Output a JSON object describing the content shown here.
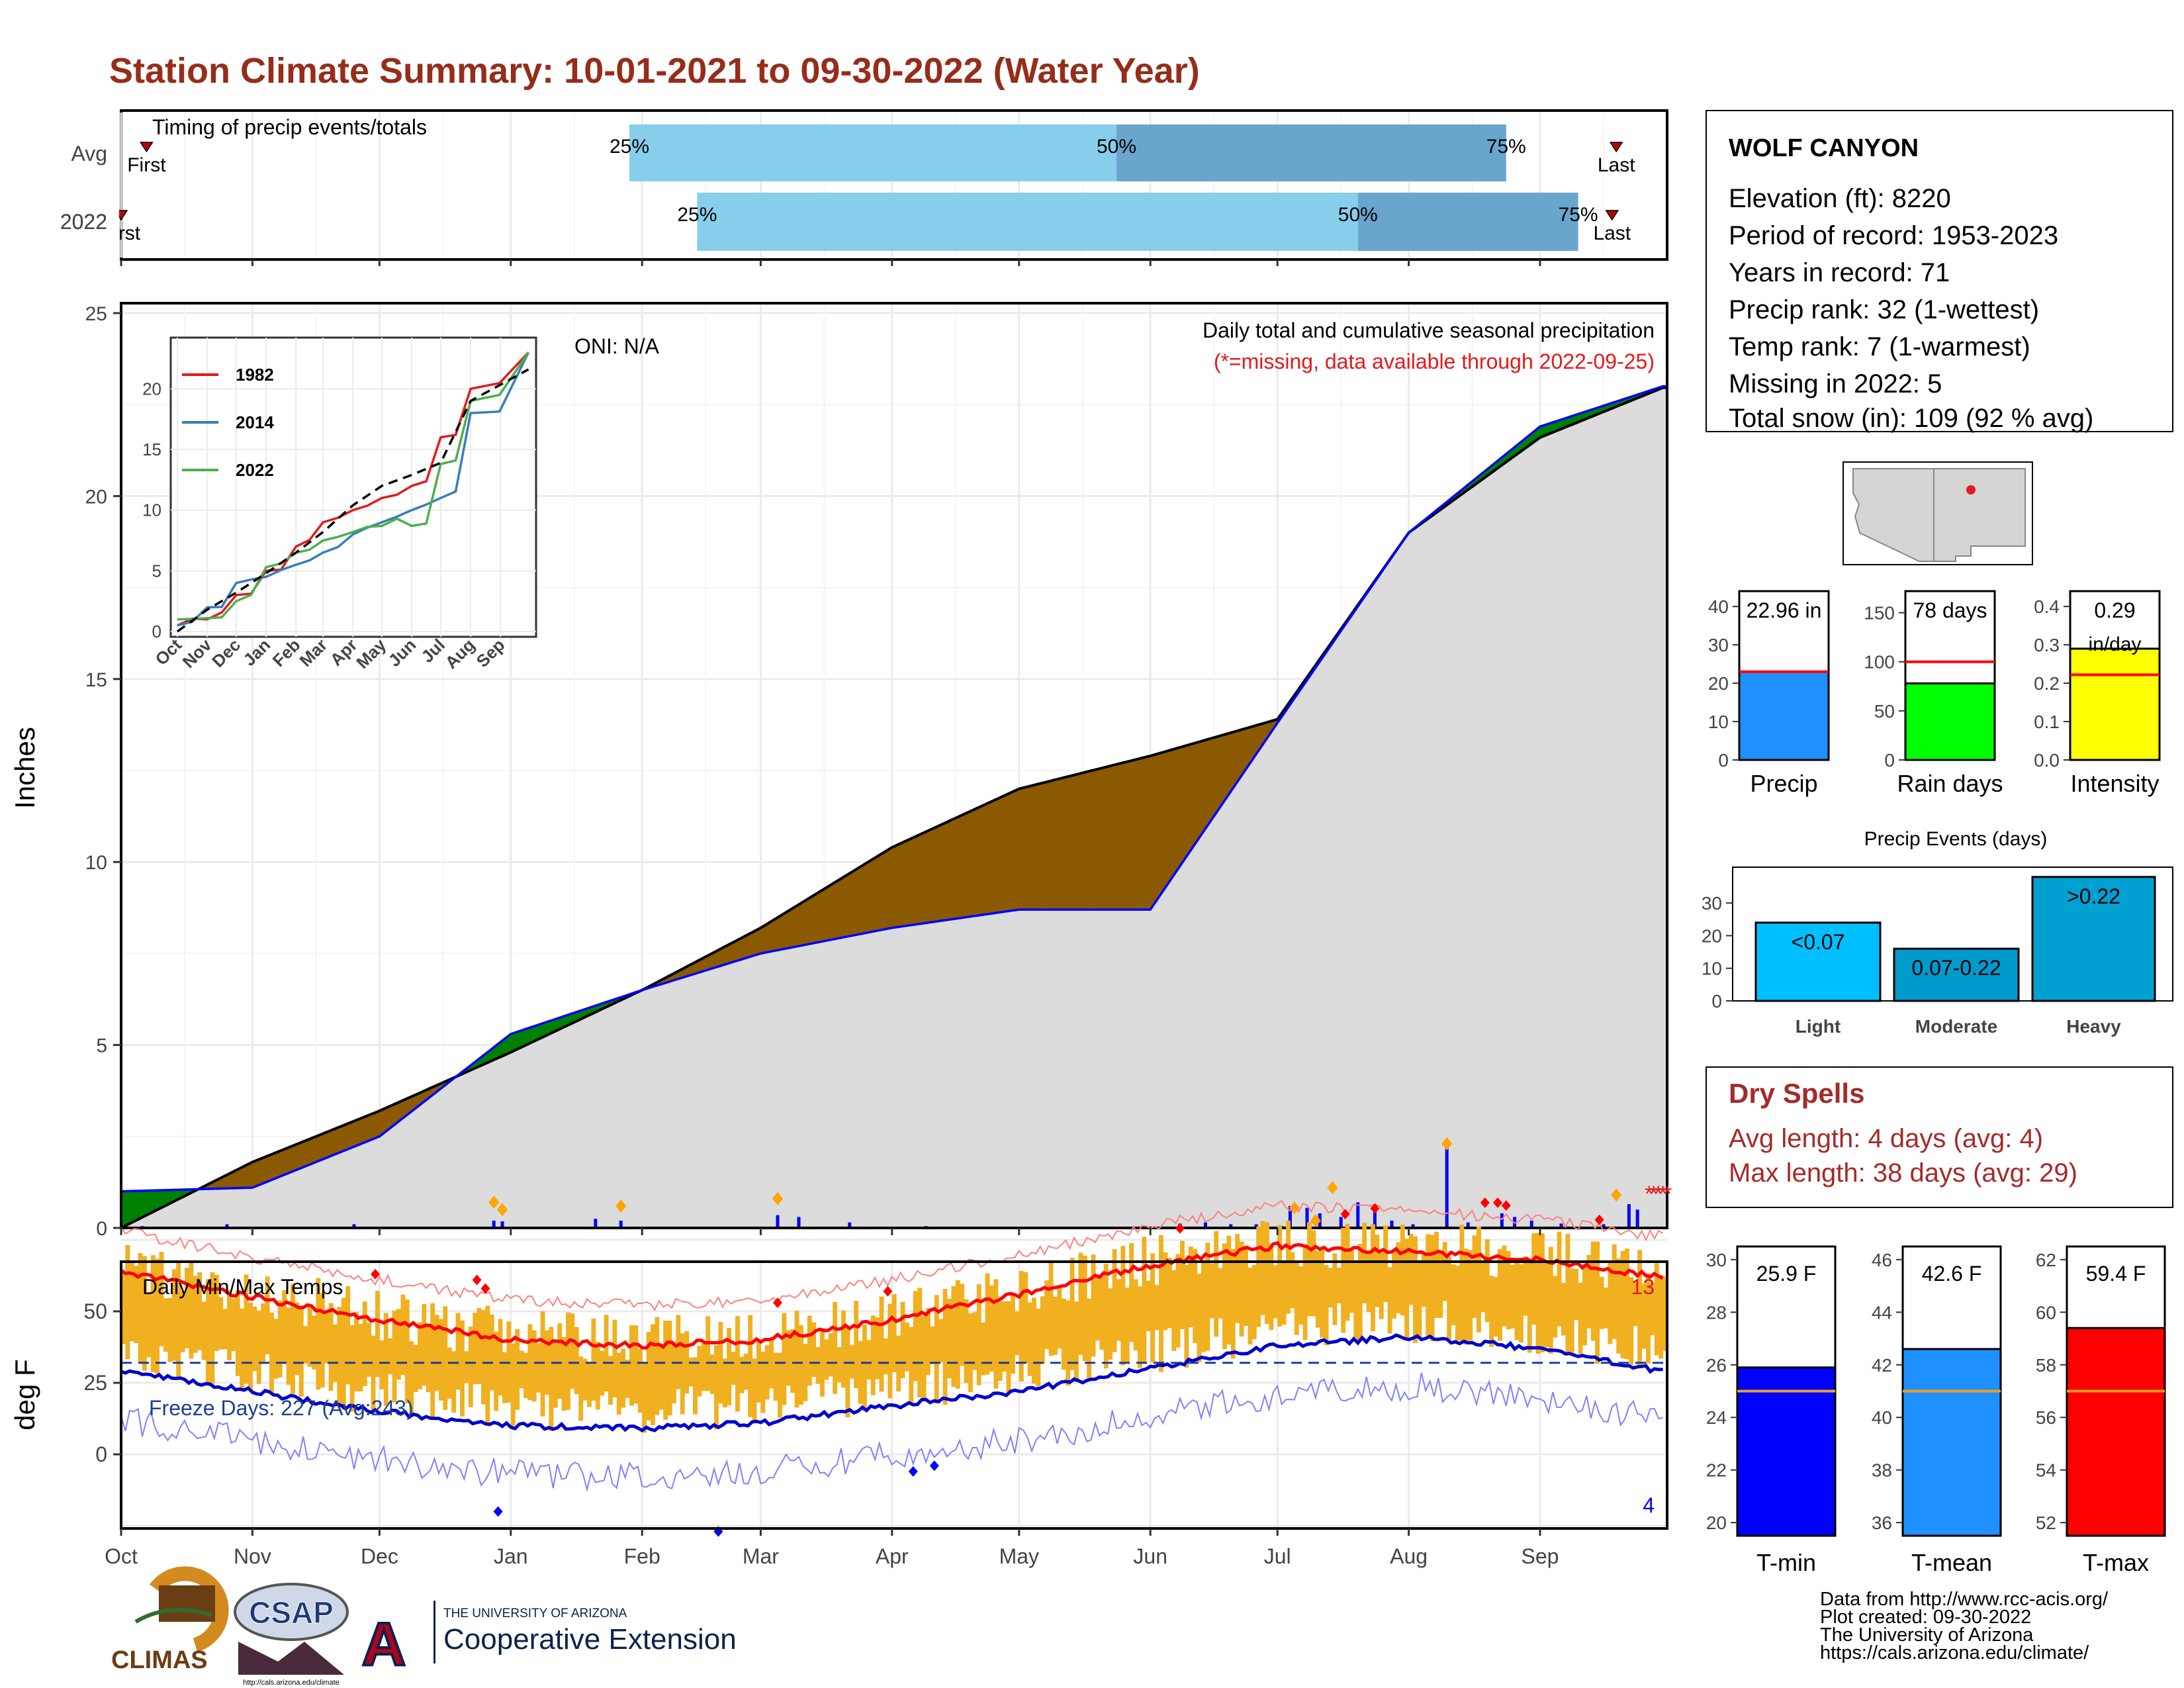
{
  "title": "Station Climate Summary: 10-01-2021 to 09-30-2022 (Water Year)",
  "months": [
    "Oct",
    "Nov",
    "Dec",
    "Jan",
    "Feb",
    "Mar",
    "Apr",
    "May",
    "Jun",
    "Jul",
    "Aug",
    "Sep"
  ],
  "timing": {
    "label": "Timing of precip events/totals",
    "rows": [
      {
        "name": "Avg",
        "first_day": 6,
        "p25_day": 120,
        "p50_day": 235,
        "p75_day": 327,
        "last_day": 353,
        "first_label": "First",
        "last_label": "Last",
        "p25_label": "25%",
        "p50_label": "50%",
        "p75_label": "75%"
      },
      {
        "name": "2022",
        "first_day": 0,
        "p25_day": 136,
        "p50_day": 292,
        "p75_day": 344,
        "last_day": 352,
        "first_label": "First",
        "last_label": "Last",
        "p25_label": "25%",
        "p50_label": "50%",
        "p75_label": "75%"
      }
    ]
  },
  "precip_panel": {
    "ylabel": "Inches",
    "yticks": [
      0,
      5,
      10,
      15,
      20,
      25
    ],
    "ylim": [
      0,
      25
    ],
    "oni": "ONI: N/A",
    "note": "Daily total and cumulative seasonal precipitation",
    "missing_note": "(*=missing, data available through 2022-09-25)"
  },
  "inset": {
    "series": [
      {
        "name": "1982",
        "color": "#e41a1c"
      },
      {
        "name": "2014",
        "color": "#377eb8"
      },
      {
        "name": "2022",
        "color": "#4daf4a"
      }
    ],
    "yticks": [
      0,
      5,
      10,
      15,
      20
    ],
    "months": [
      "Oct",
      "Nov",
      "Dec",
      "Jan",
      "Feb",
      "Mar",
      "Apr",
      "May",
      "Jun",
      "Jul",
      "Aug",
      "Sep"
    ]
  },
  "temp_panel": {
    "ylabel": "deg F",
    "label": "Daily Min/Max Temps",
    "freeze_days": "Freeze Days: 227 (Avg:243)",
    "yticks": [
      0,
      25,
      50
    ],
    "max_count": "13",
    "min_count": "4"
  },
  "station": {
    "name": "WOLF CANYON",
    "lines": [
      "Elevation (ft): 8220",
      "Period of record: 1953-2023",
      "Years in record: 71",
      "Precip rank: 32 (1-wettest)",
      "Temp rank: 7 (1-warmest)",
      "Missing in 2022: 5",
      "Total snow (in): 109 (92 % avg)"
    ]
  },
  "precip_bars": [
    {
      "label": "Precip",
      "value": 22.96,
      "avg": 23,
      "value_label": "22.96 in",
      "color": "#1e90ff",
      "yticks": [
        0,
        10,
        20,
        30,
        40
      ],
      "ymax": 44
    },
    {
      "label": "Rain days",
      "value": 78,
      "avg": 100,
      "value_label": "78 days",
      "color": "#00ff00",
      "yticks": [
        0,
        50,
        100,
        150
      ],
      "ymax": 172
    },
    {
      "label": "Intensity",
      "value": 0.29,
      "avg": 0.222,
      "value_label": "0.29",
      "value_label2": "in/day",
      "color": "#ffff00",
      "yticks": [
        "0.0",
        "0.1",
        "0.2",
        "0.3",
        "0.4"
      ],
      "ymax": 0.44
    }
  ],
  "precip_events": {
    "title": "Precip Events (days)",
    "yticks": [
      0,
      10,
      20,
      30
    ],
    "ymax": 41,
    "bars": [
      {
        "label": "Light",
        "value": 24,
        "text": "<0.07",
        "color": "#00bfff"
      },
      {
        "label": "Moderate",
        "value": 16,
        "text": "0.07-0.22",
        "color": "#009acd"
      },
      {
        "label": "Heavy",
        "value": 38,
        "text": ">0.22",
        "color": "#00a0d0"
      }
    ]
  },
  "dry_spells": {
    "title": "Dry Spells",
    "avg_line": "Avg length: 4 days (avg: 4)",
    "max_line": "Max length: 38 days (avg: 29)"
  },
  "temp_bars": [
    {
      "label": "T-min",
      "value": 25.9,
      "avg": 25,
      "value_label": "25.9 F",
      "color": "#0000ff",
      "yticks": [
        20,
        22,
        24,
        26,
        28,
        30
      ],
      "ymin": 19.5,
      "ymax": 30.5
    },
    {
      "label": "T-mean",
      "value": 42.6,
      "avg": 41,
      "value_label": "42.6 F",
      "color": "#1e90ff",
      "yticks": [
        36,
        38,
        40,
        42,
        44,
        46
      ],
      "ymin": 35.5,
      "ymax": 46.5
    },
    {
      "label": "T-max",
      "value": 59.4,
      "avg": 57,
      "value_label": "59.4 F",
      "color": "#ff0000",
      "yticks": [
        52,
        54,
        56,
        58,
        60,
        62
      ],
      "ymin": 51.5,
      "ymax": 62.5
    }
  ],
  "credits": [
    "Data from http://www.rcc-acis.org/",
    "Plot created: 09-30-2022",
    "The University of Arizona",
    "https://cals.arizona.edu/climate/"
  ],
  "logos": {
    "climas": "CLIMAS",
    "csap": "CSAP",
    "csap_url": "http://cals.arizona.edu/climate",
    "ua_small": "THE UNIVERSITY OF ARIZONA",
    "ua_big": "Cooperative Extension"
  },
  "chart_data": [
    {
      "type": "bar",
      "title": "Timing of precip events/totals",
      "categories": [
        "Avg",
        "2022"
      ],
      "series": [
        {
          "name": "25%",
          "values": [
            "Jan 29",
            "Feb 14"
          ]
        },
        {
          "name": "50%",
          "values": [
            "May 24",
            "Jul 20"
          ]
        },
        {
          "name": "75%",
          "values": [
            "Aug 24",
            "Sep 10"
          ]
        }
      ]
    },
    {
      "type": "area",
      "title": "Daily total and cumulative seasonal precipitation",
      "ylabel": "Inches",
      "ylim": [
        0,
        25
      ],
      "x": [
        "Oct 1",
        "Nov 1",
        "Dec 1",
        "Jan 1",
        "Feb 1",
        "Mar 1",
        "Apr 1",
        "May 1",
        "Jun 1",
        "Jul 1",
        "Aug 1",
        "Sep 1",
        "Sep 30"
      ],
      "series": [
        {
          "name": "cumulative 2022",
          "values": [
            1.0,
            1.1,
            2.5,
            5.3,
            6.5,
            7.5,
            8.2,
            8.7,
            8.7,
            13.8,
            19.0,
            21.9,
            23.0
          ]
        },
        {
          "name": "cumulative average",
          "values": [
            0,
            1.8,
            3.2,
            4.8,
            6.5,
            8.2,
            10.4,
            12.0,
            12.9,
            13.9,
            19.0,
            21.6,
            22.96
          ]
        }
      ],
      "grid": true
    },
    {
      "type": "line",
      "title": "Daily Min/Max Temps",
      "ylabel": "deg F",
      "x": [
        "Oct 1",
        "Nov 1",
        "Dec 1",
        "Jan 1",
        "Feb 1",
        "Mar 1",
        "Apr 1",
        "May 1",
        "Jun 1",
        "Jul 1",
        "Aug 1",
        "Sep 1",
        "Sep 30"
      ],
      "series": [
        {
          "name": "avg max",
          "values": [
            64,
            55,
            47,
            40,
            38,
            40,
            47,
            56,
            66,
            73,
            71,
            68,
            62
          ]
        },
        {
          "name": "avg min",
          "values": [
            29,
            22,
            15,
            10,
            9,
            11,
            17,
            22,
            30,
            38,
            41,
            37,
            29
          ]
        }
      ]
    },
    {
      "type": "line",
      "series": [
        {
          "name": "1982",
          "values": [
            0.5,
            1,
            3,
            5,
            7,
            9,
            10,
            11,
            12,
            16,
            20,
            23
          ]
        },
        {
          "name": "2014",
          "values": [
            0.5,
            2,
            4,
            4.5,
            5.5,
            6.5,
            8,
            9,
            10,
            11,
            18,
            23
          ]
        },
        {
          "name": "2022",
          "values": [
            1,
            1.1,
            2.5,
            5.3,
            6.5,
            7.5,
            8.2,
            8.7,
            8.7,
            13.8,
            19,
            23
          ]
        }
      ]
    }
  ]
}
